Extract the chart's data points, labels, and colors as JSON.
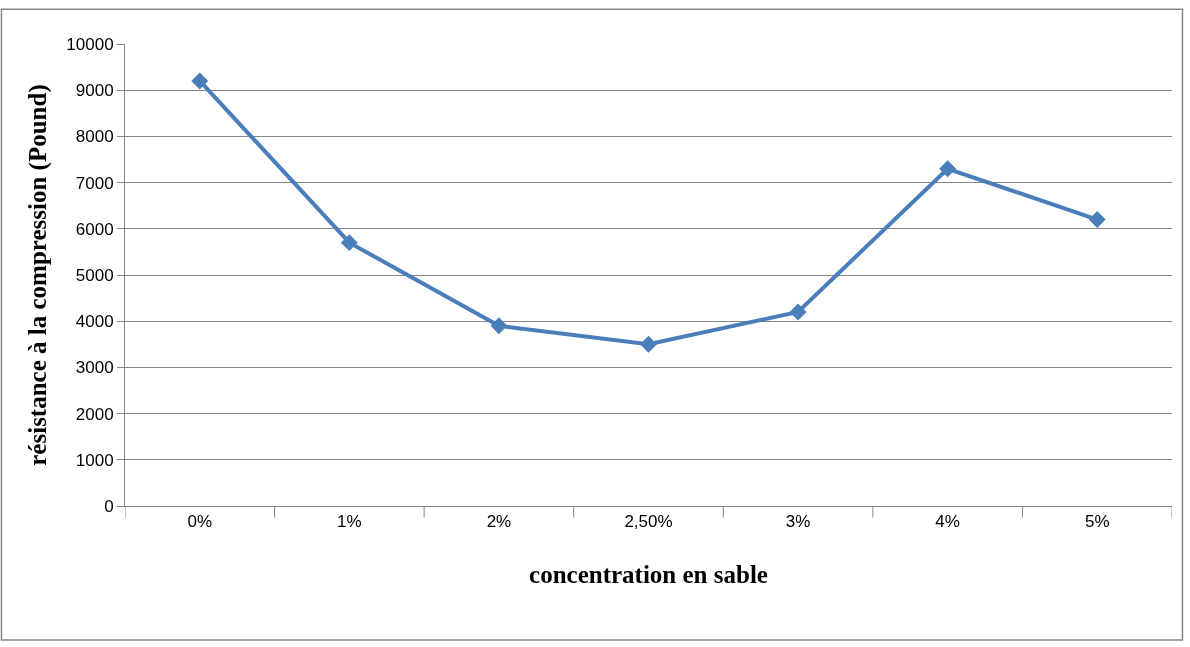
{
  "chart_data": {
    "type": "line",
    "xlabel": "concentration en sable",
    "ylabel": "résistance à la compression (Pound)",
    "categories": [
      "0%",
      "1%",
      "2%",
      "2,50%",
      "3%",
      "4%",
      "5%"
    ],
    "series": [
      {
        "color": "#4a7ebb",
        "values": [
          9200,
          5700,
          3900,
          3500,
          4200,
          7300,
          6200
        ]
      }
    ],
    "ylim": [
      0,
      10000
    ],
    "yticks": [
      0,
      1000,
      2000,
      3000,
      4000,
      5000,
      6000,
      7000,
      8000,
      9000,
      10000
    ],
    "grid": "y",
    "marker": "diamond",
    "line_style": "solid"
  }
}
